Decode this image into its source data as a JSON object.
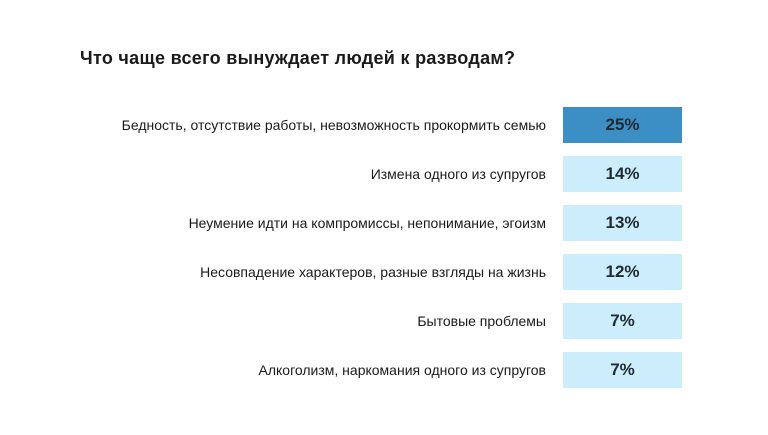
{
  "chart_data": {
    "type": "table",
    "title": "Что чаще всего вынуждает людей к разводам?",
    "categories": [
      "Бедность, отсутствие работы, невозможность прокормить семью",
      "Измена одного из супругов",
      "Неумение идти на компромиссы, непонимание, эгоизм",
      "Несовпадение характеров, разные взгляды на жизнь",
      "Бытовые проблемы",
      "Алкоголизм, наркомания одного из супругов"
    ],
    "values": [
      25,
      14,
      13,
      12,
      7,
      7
    ],
    "value_labels": [
      "25%",
      "14%",
      "13%",
      "12%",
      "7%",
      "7%"
    ],
    "colors": {
      "highlight": "#3b8fc5",
      "default": "#cceefc"
    }
  }
}
